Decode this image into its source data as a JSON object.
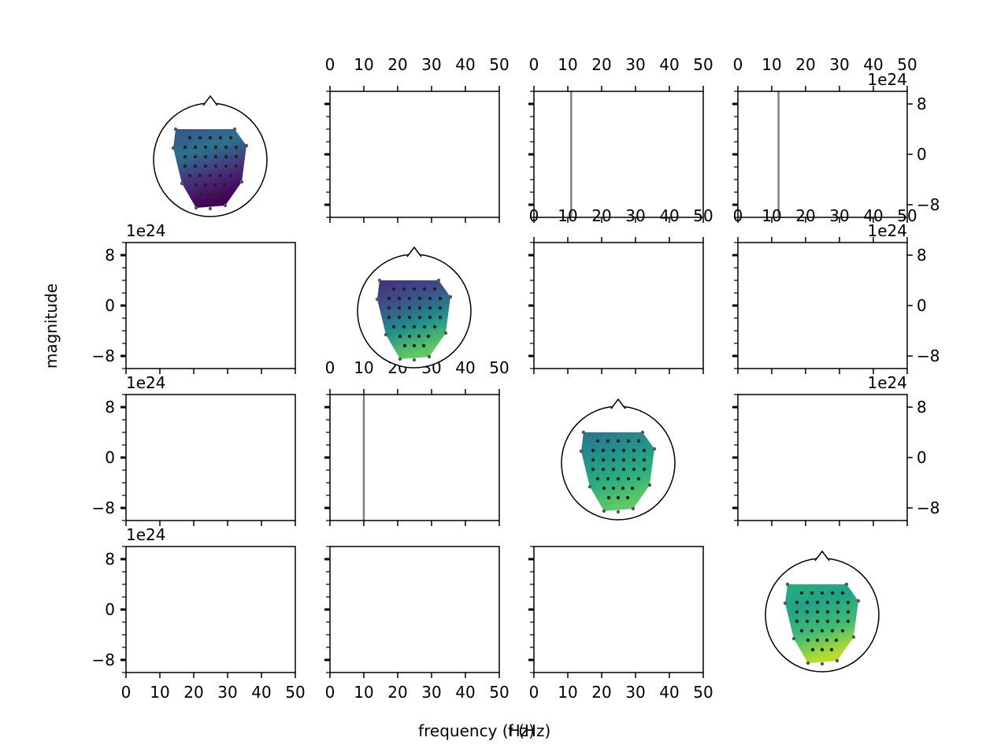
{
  "figure": {
    "xlabel": "frequency (Hz)",
    "xlabel_overlap": "f (Hz)",
    "ylabel": "magnitude"
  },
  "chart_data": [
    {
      "type": "line",
      "row": 0,
      "col": 1,
      "xlim": [
        0,
        50
      ],
      "ylim": [
        -10,
        10
      ],
      "x_ticks": [
        0,
        10,
        20,
        30,
        40,
        50
      ],
      "y_ticks": [
        -8,
        0,
        8
      ],
      "vlines": [],
      "xticks_top": true
    },
    {
      "type": "line",
      "row": 0,
      "col": 2,
      "xlim": [
        0,
        50
      ],
      "ylim": [
        -10,
        10
      ],
      "x_ticks": [
        0,
        10,
        20,
        30,
        40,
        50
      ],
      "y_ticks": [
        -8,
        0,
        8
      ],
      "vlines": [
        11
      ],
      "xticks_top": true
    },
    {
      "type": "line",
      "row": 0,
      "col": 3,
      "xlim": [
        0,
        50
      ],
      "ylim": [
        -10,
        10
      ],
      "x_ticks": [
        0,
        10,
        20,
        30,
        40,
        50
      ],
      "y_ticks": [
        -8,
        0,
        8
      ],
      "vlines": [
        12
      ],
      "xticks_top": true,
      "yticks_right": true,
      "offset_text": "1e24"
    },
    {
      "type": "line",
      "row": 1,
      "col": 0,
      "xlim": [
        0,
        50
      ],
      "ylim": [
        -10,
        10
      ],
      "x_ticks": [
        0,
        10,
        20,
        30,
        40,
        50
      ],
      "y_ticks": [
        -8,
        0,
        8
      ],
      "vlines": [],
      "yticks_left": true,
      "offset_text": "1e24"
    },
    {
      "type": "line",
      "row": 1,
      "col": 2,
      "xlim": [
        0,
        50
      ],
      "ylim": [
        -10,
        10
      ],
      "x_ticks": [
        0,
        10,
        20,
        30,
        40,
        50
      ],
      "y_ticks": [
        -8,
        0,
        8
      ],
      "vlines": [],
      "xticks_top": true
    },
    {
      "type": "line",
      "row": 1,
      "col": 3,
      "xlim": [
        0,
        50
      ],
      "ylim": [
        -10,
        10
      ],
      "x_ticks": [
        0,
        10,
        20,
        30,
        40,
        50
      ],
      "y_ticks": [
        -8,
        0,
        8
      ],
      "vlines": [],
      "xticks_top": true,
      "yticks_right": true,
      "offset_text": "1e24"
    },
    {
      "type": "line",
      "row": 2,
      "col": 0,
      "xlim": [
        0,
        50
      ],
      "ylim": [
        -10,
        10
      ],
      "x_ticks": [
        0,
        10,
        20,
        30,
        40,
        50
      ],
      "y_ticks": [
        -8,
        0,
        8
      ],
      "vlines": [],
      "yticks_left": true,
      "offset_text": "1e24"
    },
    {
      "type": "line",
      "row": 2,
      "col": 1,
      "xlim": [
        0,
        50
      ],
      "ylim": [
        -10,
        10
      ],
      "x_ticks": [
        0,
        10,
        20,
        30,
        40,
        50
      ],
      "y_ticks": [
        -8,
        0,
        8
      ],
      "vlines": [
        10
      ],
      "xticks_top": true
    },
    {
      "type": "line",
      "row": 2,
      "col": 3,
      "xlim": [
        0,
        50
      ],
      "ylim": [
        -10,
        10
      ],
      "x_ticks": [
        0,
        10,
        20,
        30,
        40,
        50
      ],
      "y_ticks": [
        -8,
        0,
        8
      ],
      "vlines": [],
      "yticks_right": true,
      "offset_text": "1e24"
    },
    {
      "type": "line",
      "row": 3,
      "col": 0,
      "xlim": [
        0,
        50
      ],
      "ylim": [
        -10,
        10
      ],
      "x_ticks": [
        0,
        10,
        20,
        30,
        40,
        50
      ],
      "y_ticks": [
        -8,
        0,
        8
      ],
      "vlines": [],
      "yticks_left": true,
      "xticks_bottom": true,
      "offset_text": "1e24"
    },
    {
      "type": "line",
      "row": 3,
      "col": 1,
      "xlim": [
        0,
        50
      ],
      "ylim": [
        -10,
        10
      ],
      "x_ticks": [
        0,
        10,
        20,
        30,
        40,
        50
      ],
      "y_ticks": [
        -8,
        0,
        8
      ],
      "vlines": [],
      "xticks_bottom": true
    },
    {
      "type": "line",
      "row": 3,
      "col": 2,
      "xlim": [
        0,
        50
      ],
      "ylim": [
        -10,
        10
      ],
      "x_ticks": [
        0,
        10,
        20,
        30,
        40,
        50
      ],
      "y_ticks": [
        -8,
        0,
        8
      ],
      "vlines": [],
      "xticks_bottom": true
    }
  ],
  "topomaps": [
    {
      "row": 0,
      "col": 0,
      "colors": [
        "#3b528b",
        "#2c728e",
        "#46327e",
        "#440154"
      ]
    },
    {
      "row": 1,
      "col": 1,
      "colors": [
        "#472d7b",
        "#3b528b",
        "#21918c",
        "#5ec962"
      ]
    },
    {
      "row": 2,
      "col": 2,
      "colors": [
        "#2c728e",
        "#21918c",
        "#28ae80",
        "#5ec962"
      ]
    },
    {
      "row": 3,
      "col": 3,
      "colors": [
        "#28ae80",
        "#20a386",
        "#3fbc73",
        "#b5de2b"
      ]
    }
  ]
}
